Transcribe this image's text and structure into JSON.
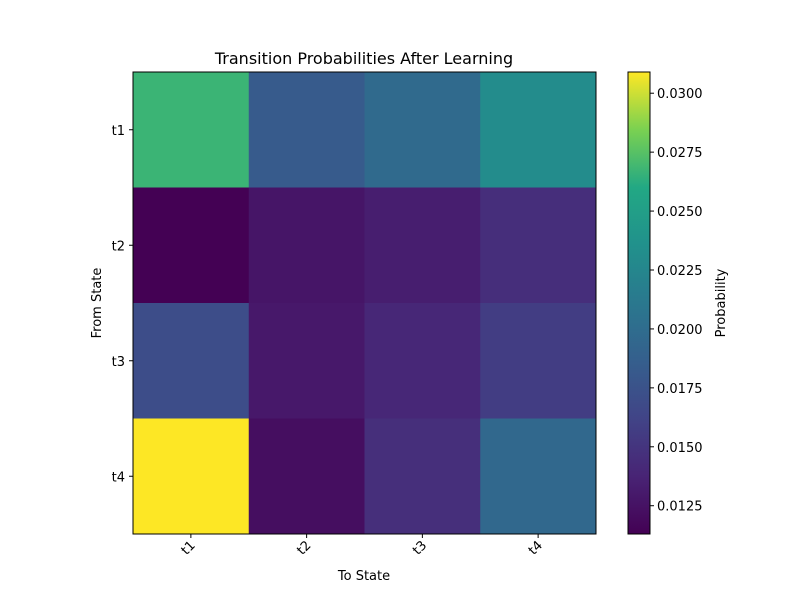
{
  "chart_data": {
    "type": "heatmap",
    "title": "Transition Probabilities After Learning",
    "xlabel": "To State",
    "ylabel": "From State",
    "x_categories": [
      "t1",
      "t2",
      "t3",
      "t4"
    ],
    "y_categories": [
      "t1",
      "t2",
      "t3",
      "t4"
    ],
    "values": [
      [
        0.0267,
        0.0183,
        0.0197,
        0.0231
      ],
      [
        0.0113,
        0.0127,
        0.0133,
        0.0145
      ],
      [
        0.017,
        0.0129,
        0.014,
        0.0157
      ],
      [
        0.0309,
        0.0122,
        0.0146,
        0.0195
      ]
    ],
    "colormap": "viridis",
    "colorbar": {
      "label": "Probability",
      "min": 0.0113,
      "max": 0.0309,
      "ticks": [
        0.0125,
        0.015,
        0.0175,
        0.02,
        0.0225,
        0.025,
        0.0275,
        0.03
      ],
      "tick_labels": [
        "0.0125",
        "0.0150",
        "0.0175",
        "0.0200",
        "0.0225",
        "0.0250",
        "0.0275",
        "0.0300"
      ]
    },
    "grid": false
  }
}
